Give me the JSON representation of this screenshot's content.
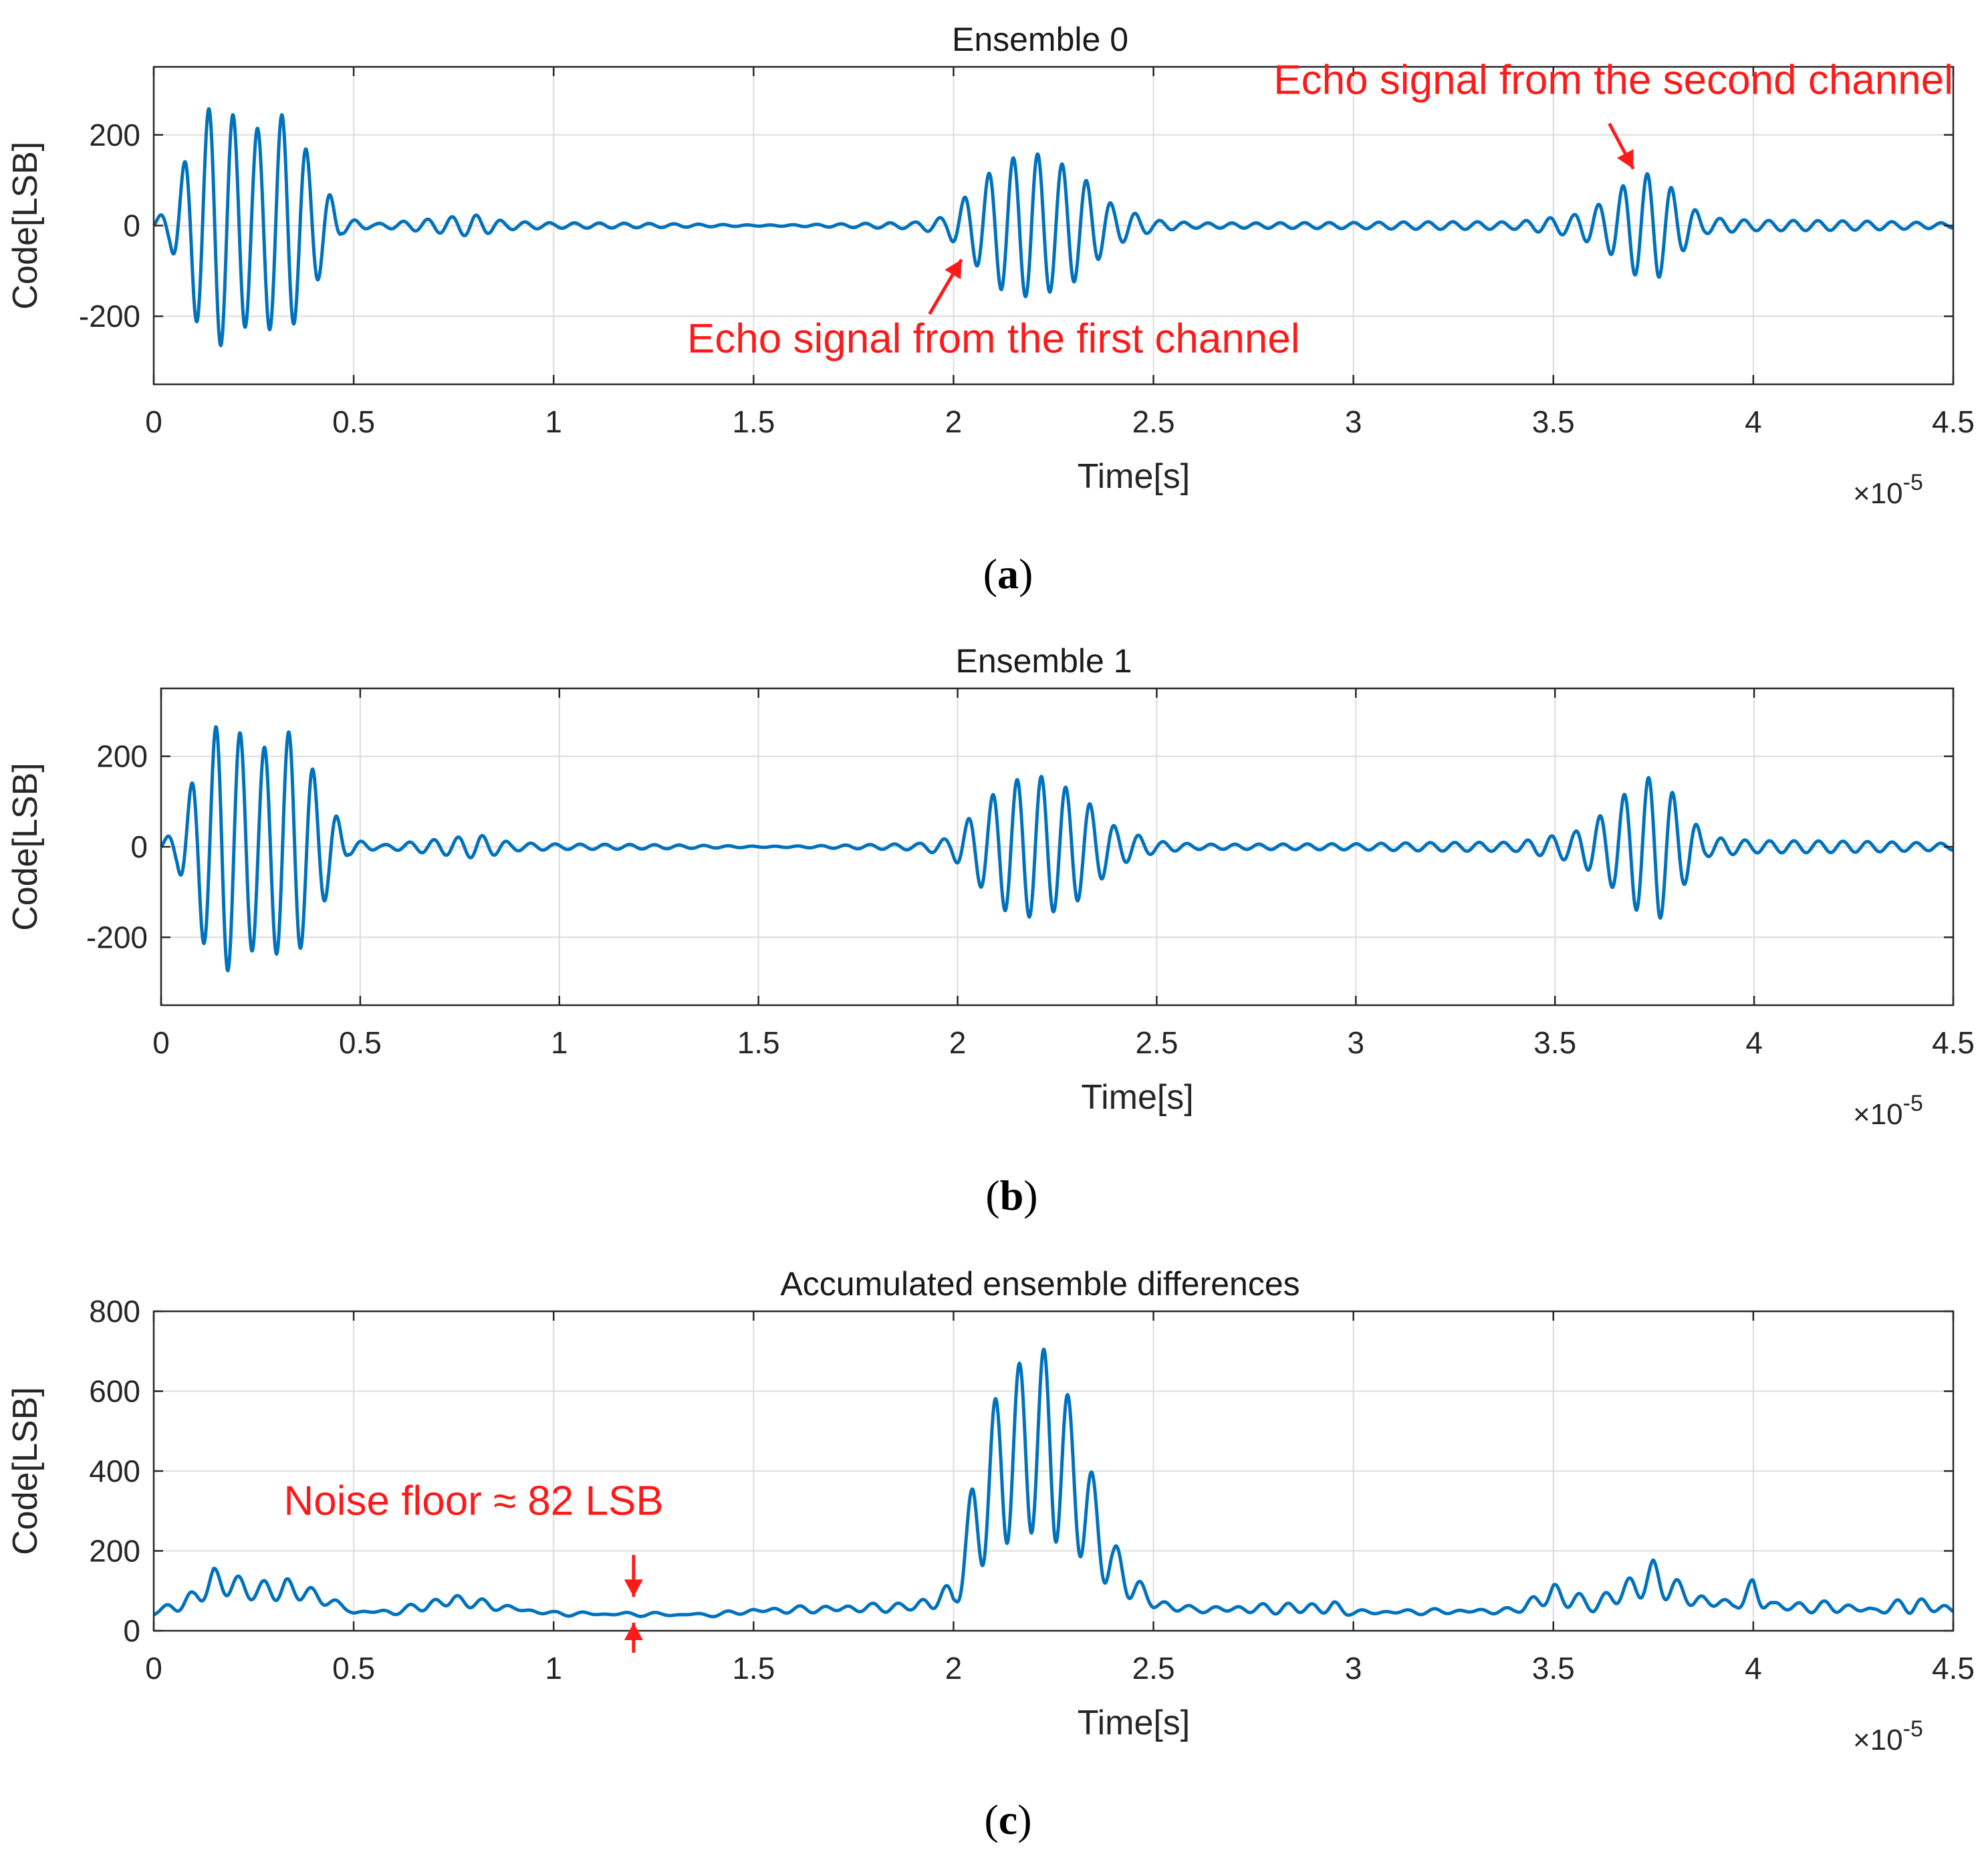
{
  "colors": {
    "series": "#0072BD",
    "annotation": "#ff1a1a"
  },
  "chart_data": [
    {
      "id": "a",
      "type": "line",
      "title": "Ensemble 0",
      "xlabel": "Time[s]",
      "ylabel": "Code[LSB]",
      "x_multiplier": "×10",
      "x_multiplier_exp": "-5",
      "xlim": [
        0,
        4.5
      ],
      "ylim": [
        -350,
        350
      ],
      "xticks": [
        0,
        0.5,
        1,
        1.5,
        2,
        2.5,
        3,
        3.5,
        4,
        4.5
      ],
      "xtick_labels": [
        "0",
        "0.5",
        "1",
        "1.5",
        "2",
        "2.5",
        "3",
        "3.5",
        "4",
        "4.5"
      ],
      "yticks": [
        -200,
        0,
        200
      ],
      "ytick_labels": [
        "-200",
        "0",
        "200"
      ],
      "grid": true,
      "caption": "a",
      "series": [
        {
          "name": "Ensemble 0",
          "signal": "oscillation",
          "cycles_per_unit": 16.4,
          "base_noise": 2,
          "envelope": [
            [
              0,
              8
            ],
            [
              0.04,
              40
            ],
            [
              0.1,
              200
            ],
            [
              0.15,
              275
            ],
            [
              0.25,
              210
            ],
            [
              0.33,
              250
            ],
            [
              0.4,
              140
            ],
            [
              0.47,
              20
            ],
            [
              0.55,
              6
            ],
            [
              0.7,
              16
            ],
            [
              0.8,
              24
            ],
            [
              0.88,
              8
            ],
            [
              1.0,
              4
            ],
            [
              1.5,
              3
            ],
            [
              1.9,
              6
            ],
            [
              1.98,
              18
            ],
            [
              2.05,
              80
            ],
            [
              2.12,
              140
            ],
            [
              2.2,
              160
            ],
            [
              2.3,
              125
            ],
            [
              2.4,
              45
            ],
            [
              2.5,
              14
            ],
            [
              2.6,
              8
            ],
            [
              3.0,
              5
            ],
            [
              3.4,
              8
            ],
            [
              3.55,
              25
            ],
            [
              3.63,
              55
            ],
            [
              3.7,
              110
            ],
            [
              3.76,
              120
            ],
            [
              3.82,
              60
            ],
            [
              3.88,
              18
            ],
            [
              4.0,
              10
            ],
            [
              4.3,
              8
            ],
            [
              4.5,
              6
            ]
          ]
        }
      ],
      "annotations": [
        {
          "text": "Echo signal from the second channel",
          "anchor": "end",
          "text_x": 4.5,
          "text_y": 290,
          "arrow_from": [
            3.64,
            225
          ],
          "arrow_to": [
            3.7,
            125
          ]
        },
        {
          "text": "Echo signal from the first channel",
          "anchor": "middle",
          "text_x": 2.1,
          "text_y": -280,
          "arrow_from": [
            1.94,
            -195
          ],
          "arrow_to": [
            2.02,
            -75
          ]
        }
      ]
    },
    {
      "id": "b",
      "type": "line",
      "title": "Ensemble 1",
      "xlabel": "Time[s]",
      "ylabel": "Code[LSB]",
      "x_multiplier": "×10",
      "x_multiplier_exp": "-5",
      "xlim": [
        0,
        4.5
      ],
      "ylim": [
        -350,
        350
      ],
      "xticks": [
        0,
        0.5,
        1,
        1.5,
        2,
        2.5,
        3,
        3.5,
        4,
        4.5
      ],
      "xtick_labels": [
        "0",
        "0.5",
        "1",
        "1.5",
        "2",
        "2.5",
        "3",
        "3.5",
        "4",
        "4.5"
      ],
      "yticks": [
        -200,
        0,
        200
      ],
      "ytick_labels": [
        "-200",
        "0",
        "200"
      ],
      "grid": true,
      "caption": "b",
      "series": [
        {
          "name": "Ensemble 1",
          "signal": "oscillation",
          "cycles_per_unit": 16.4,
          "base_noise": 2,
          "envelope": [
            [
              0,
              8
            ],
            [
              0.04,
              40
            ],
            [
              0.1,
              200
            ],
            [
              0.15,
              285
            ],
            [
              0.25,
              215
            ],
            [
              0.33,
              260
            ],
            [
              0.4,
              140
            ],
            [
              0.47,
              20
            ],
            [
              0.55,
              6
            ],
            [
              0.7,
              18
            ],
            [
              0.8,
              26
            ],
            [
              0.88,
              8
            ],
            [
              1.0,
              4
            ],
            [
              1.5,
              3
            ],
            [
              1.9,
              6
            ],
            [
              1.98,
              18
            ],
            [
              2.05,
              80
            ],
            [
              2.12,
              140
            ],
            [
              2.2,
              158
            ],
            [
              2.3,
              120
            ],
            [
              2.4,
              42
            ],
            [
              2.5,
              14
            ],
            [
              2.6,
              8
            ],
            [
              3.0,
              5
            ],
            [
              3.4,
              10
            ],
            [
              3.55,
              35
            ],
            [
              3.63,
              80
            ],
            [
              3.7,
              140
            ],
            [
              3.76,
              165
            ],
            [
              3.82,
              90
            ],
            [
              3.88,
              22
            ],
            [
              4.0,
              12
            ],
            [
              4.3,
              10
            ],
            [
              4.5,
              8
            ]
          ]
        }
      ],
      "annotations": []
    },
    {
      "id": "c",
      "type": "line",
      "title": "Accumulated ensemble differences",
      "xlabel": "Time[s]",
      "ylabel": "Code[LSB]",
      "x_multiplier": "×10",
      "x_multiplier_exp": "-5",
      "xlim": [
        0,
        4.5
      ],
      "ylim": [
        0,
        800
      ],
      "xticks": [
        0,
        0.5,
        1,
        1.5,
        2,
        2.5,
        3,
        3.5,
        4,
        4.5
      ],
      "xtick_labels": [
        "0",
        "0.5",
        "1",
        "1.5",
        "2",
        "2.5",
        "3",
        "3.5",
        "4",
        "4.5"
      ],
      "yticks": [
        0,
        200,
        400,
        600,
        800
      ],
      "ytick_labels": [
        "0",
        "200",
        "400",
        "600",
        "800"
      ],
      "grid": true,
      "caption": "c",
      "series": [
        {
          "name": "Accumulated ensemble differences",
          "signal": "rectified",
          "cycles_per_unit": 16.4,
          "floor": [
            [
              0,
              40
            ],
            [
              0.1,
              60
            ],
            [
              0.15,
              90
            ],
            [
              0.3,
              75
            ],
            [
              0.4,
              75
            ],
            [
              0.5,
              45
            ],
            [
              0.6,
              42
            ],
            [
              0.75,
              62
            ],
            [
              0.9,
              50
            ],
            [
              1.0,
              40
            ],
            [
              1.4,
              38
            ],
            [
              1.5,
              45
            ],
            [
              1.9,
              50
            ],
            [
              2.0,
              60
            ],
            [
              2.1,
              200
            ],
            [
              2.2,
              250
            ],
            [
              2.3,
              200
            ],
            [
              2.4,
              100
            ],
            [
              2.5,
              55
            ],
            [
              2.6,
              48
            ],
            [
              3.0,
              42
            ],
            [
              3.4,
              45
            ],
            [
              3.5,
              65
            ],
            [
              3.6,
              50
            ],
            [
              3.75,
              90
            ],
            [
              3.85,
              60
            ],
            [
              4.0,
              60
            ],
            [
              4.1,
              48
            ],
            [
              4.5,
              45
            ]
          ],
          "envelope": [
            [
              0,
              5
            ],
            [
              0.1,
              40
            ],
            [
              0.15,
              70
            ],
            [
              0.25,
              40
            ],
            [
              0.33,
              60
            ],
            [
              0.4,
              30
            ],
            [
              0.5,
              5
            ],
            [
              0.6,
              10
            ],
            [
              0.75,
              30
            ],
            [
              0.9,
              10
            ],
            [
              1.0,
              6
            ],
            [
              1.4,
              4
            ],
            [
              1.5,
              10
            ],
            [
              1.9,
              20
            ],
            [
              2.0,
              60
            ],
            [
              2.05,
              250
            ],
            [
              2.12,
              420
            ],
            [
              2.2,
              450
            ],
            [
              2.25,
              480
            ],
            [
              2.3,
              350
            ],
            [
              2.4,
              120
            ],
            [
              2.5,
              25
            ],
            [
              2.6,
              10
            ],
            [
              2.95,
              30
            ],
            [
              3.0,
              8
            ],
            [
              3.4,
              10
            ],
            [
              3.5,
              55
            ],
            [
              3.6,
              25
            ],
            [
              3.75,
              85
            ],
            [
              3.85,
              35
            ],
            [
              3.95,
              12
            ],
            [
              4.0,
              70
            ],
            [
              4.05,
              20
            ],
            [
              4.2,
              25
            ],
            [
              4.3,
              10
            ],
            [
              4.4,
              40
            ],
            [
              4.5,
              15
            ]
          ]
        }
      ],
      "annotations": [
        {
          "text": "Noise floor ≈ 82 LSB",
          "anchor": "middle",
          "text_x": 0.8,
          "text_y": 290
        }
      ],
      "noise_marker_x": 1.2
    }
  ]
}
